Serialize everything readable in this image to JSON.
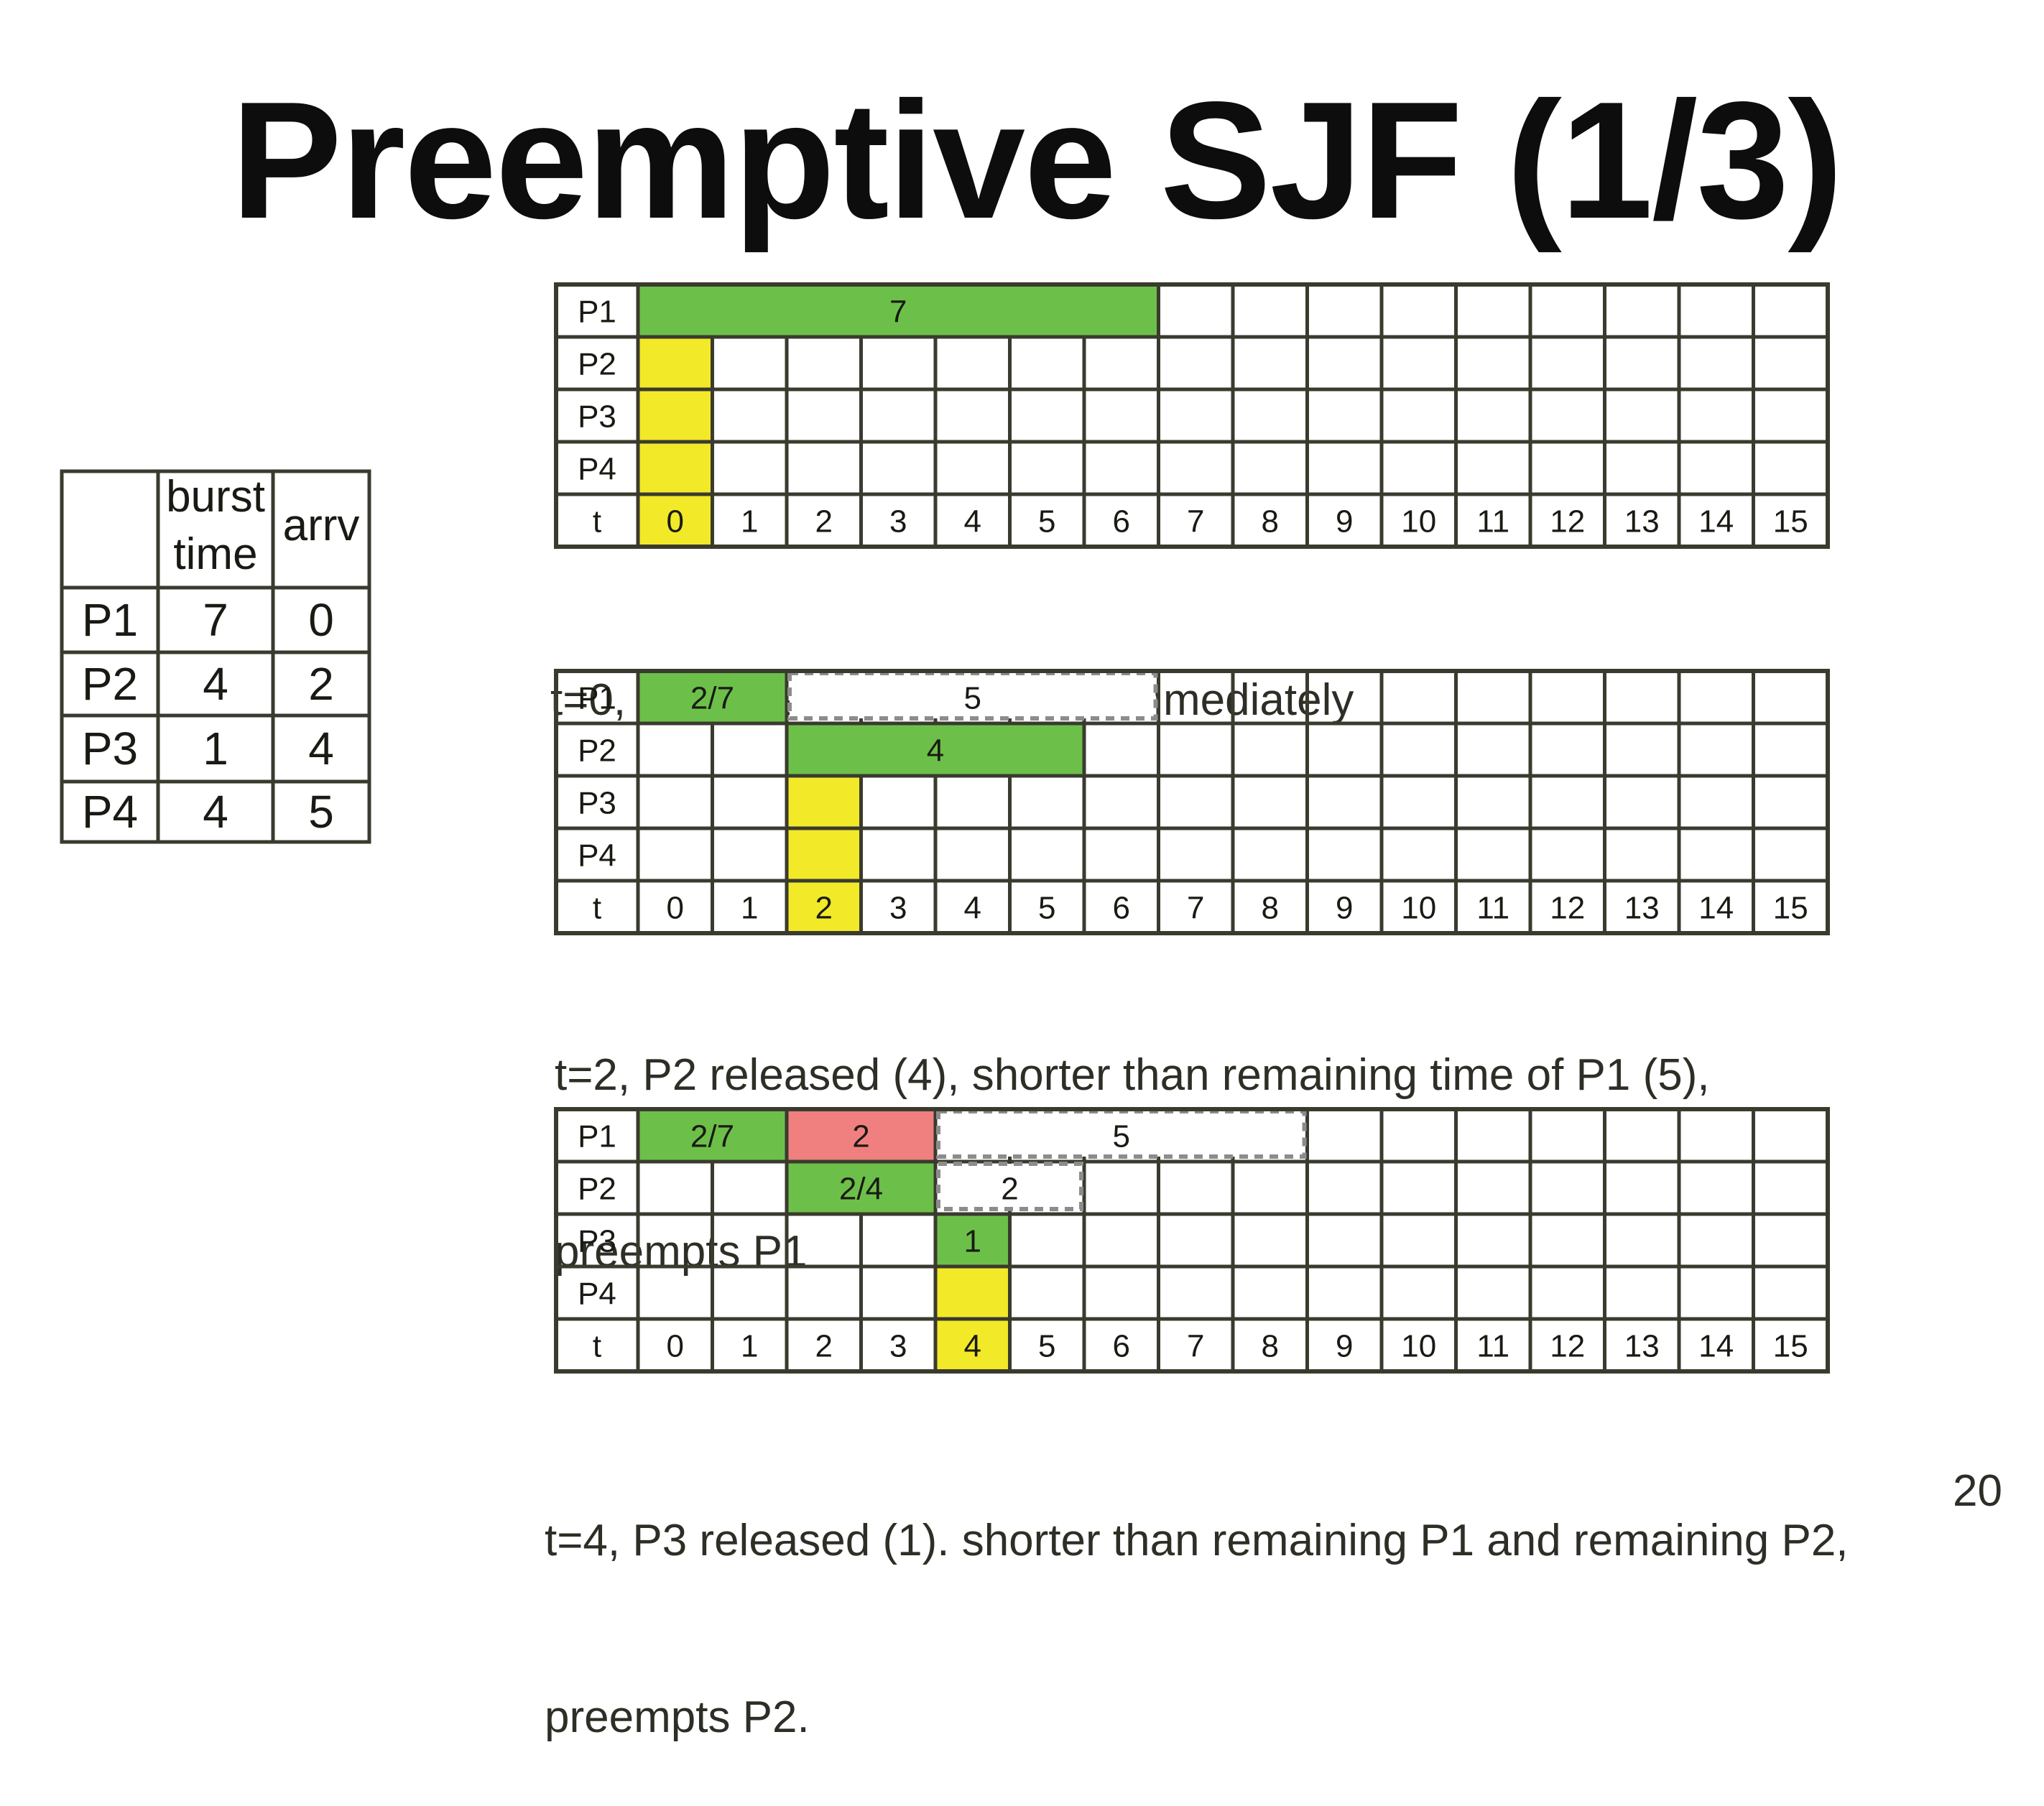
{
  "slide": {
    "title": "Preemptive SJF (1/3)",
    "page_number": "20"
  },
  "colors": {
    "grid_line": "#3a3a2e",
    "running": "#6cc04a",
    "arrival": "#f2e929",
    "preempted": "#f08080",
    "remaining_dash": "#8c8c8c"
  },
  "process_table": {
    "headers": [
      "",
      "burst time",
      "arrv"
    ],
    "rows": [
      {
        "name": "P1",
        "burst": "7",
        "arrv": "0"
      },
      {
        "name": "P2",
        "burst": "4",
        "arrv": "2"
      },
      {
        "name": "P3",
        "burst": "1",
        "arrv": "4"
      },
      {
        "name": "P4",
        "burst": "4",
        "arrv": "5"
      }
    ]
  },
  "gantt": {
    "row_labels": [
      "P1",
      "P2",
      "P3",
      "P4",
      "t"
    ],
    "time_labels": [
      "0",
      "1",
      "2",
      "3",
      "4",
      "5",
      "6",
      "7",
      "8",
      "9",
      "10",
      "11",
      "12",
      "13",
      "14",
      "15"
    ],
    "charts": [
      {
        "highlight_t": 0,
        "bars": [
          {
            "row": 0,
            "start": 0,
            "end": 7,
            "kind": "running",
            "label": "7"
          },
          {
            "row": 1,
            "start": 0,
            "end": 1,
            "kind": "arrival",
            "label": ""
          },
          {
            "row": 2,
            "start": 0,
            "end": 1,
            "kind": "arrival",
            "label": ""
          },
          {
            "row": 3,
            "start": 0,
            "end": 1,
            "kind": "arrival",
            "label": ""
          }
        ],
        "caption": [
          "t=0, P1 released. scheduled immediately"
        ]
      },
      {
        "highlight_t": 2,
        "bars": [
          {
            "row": 0,
            "start": 0,
            "end": 2,
            "kind": "running",
            "label": "2/7"
          },
          {
            "row": 0,
            "start": 2,
            "end": 7,
            "kind": "remaining",
            "label": "5"
          },
          {
            "row": 1,
            "start": 2,
            "end": 6,
            "kind": "running",
            "label": "4"
          },
          {
            "row": 2,
            "start": 2,
            "end": 3,
            "kind": "arrival",
            "label": ""
          },
          {
            "row": 3,
            "start": 2,
            "end": 3,
            "kind": "arrival",
            "label": ""
          }
        ],
        "caption": [
          "t=2, P2 released (4), shorter than remaining time of P1 (5),",
          "preempts P1"
        ]
      },
      {
        "highlight_t": 4,
        "bars": [
          {
            "row": 0,
            "start": 0,
            "end": 2,
            "kind": "running",
            "label": "2/7"
          },
          {
            "row": 0,
            "start": 2,
            "end": 4,
            "kind": "preempted",
            "label": "2"
          },
          {
            "row": 0,
            "start": 4,
            "end": 9,
            "kind": "remaining",
            "label": "5"
          },
          {
            "row": 1,
            "start": 2,
            "end": 4,
            "kind": "running",
            "label": "2/4"
          },
          {
            "row": 1,
            "start": 4,
            "end": 6,
            "kind": "remaining",
            "label": "2"
          },
          {
            "row": 2,
            "start": 4,
            "end": 5,
            "kind": "running",
            "label": "1"
          },
          {
            "row": 3,
            "start": 4,
            "end": 5,
            "kind": "arrival",
            "label": ""
          }
        ],
        "caption": [
          "t=4, P3 released (1). shorter than remaining P1 and remaining P2,",
          "preempts P2."
        ]
      }
    ]
  }
}
